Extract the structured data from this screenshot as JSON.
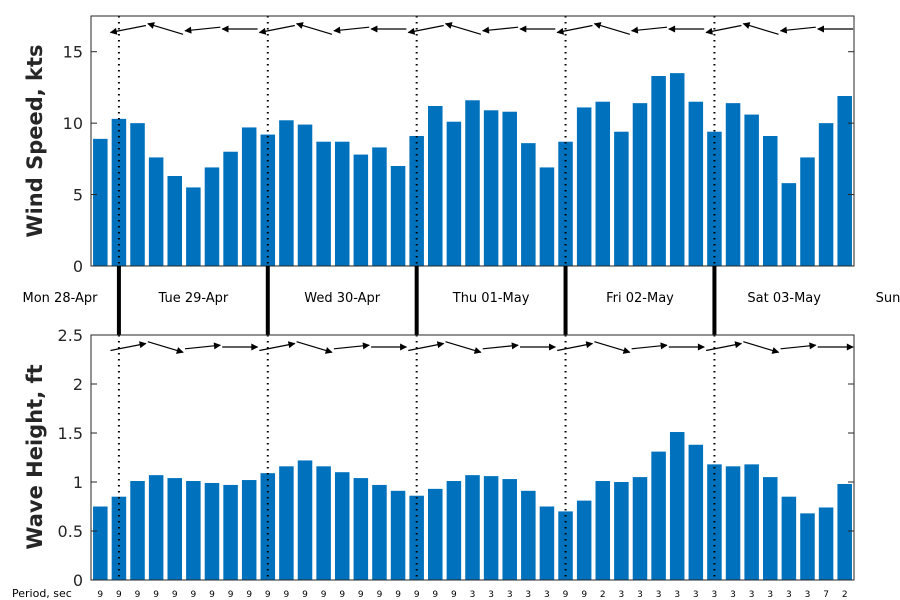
{
  "chart_data": [
    {
      "type": "bar",
      "ylabel": "Wind Speed, kts",
      "ylim": [
        0,
        17.5
      ],
      "yticks": [
        "0",
        "5",
        "10",
        "15"
      ],
      "ytick_values": [
        0,
        5,
        10,
        15
      ],
      "color": "#0072BD",
      "arrows": "westward (pointing left), slightly tilted",
      "values": [
        8.9,
        10.3,
        10.0,
        7.6,
        6.3,
        5.5,
        6.9,
        8.0,
        9.7,
        9.2,
        10.2,
        9.9,
        8.7,
        8.7,
        7.8,
        8.3,
        7.0,
        9.1,
        11.2,
        10.1,
        11.6,
        10.9,
        10.8,
        8.6,
        6.9,
        8.7,
        11.1,
        11.5,
        9.4,
        11.4,
        13.3,
        13.5,
        11.5,
        9.4,
        11.4,
        10.6,
        9.1,
        5.8,
        7.6,
        10.0,
        11.9
      ]
    },
    {
      "type": "bar",
      "ylabel": "Wave Height, ft",
      "ylim": [
        0,
        2.5
      ],
      "yticks": [
        "0",
        "0.5",
        "1",
        "1.5",
        "2",
        "2.5"
      ],
      "ytick_values": [
        0,
        0.5,
        1,
        1.5,
        2,
        2.5
      ],
      "color": "#0072BD",
      "arrows": "eastward (pointing right), slightly tilted",
      "values": [
        0.75,
        0.85,
        1.01,
        1.07,
        1.04,
        1.01,
        0.99,
        0.97,
        1.02,
        1.09,
        1.16,
        1.22,
        1.16,
        1.1,
        1.04,
        0.97,
        0.91,
        0.86,
        0.93,
        1.01,
        1.07,
        1.06,
        1.03,
        0.91,
        0.75,
        0.7,
        0.81,
        1.01,
        1.0,
        1.05,
        1.31,
        1.51,
        1.38,
        1.18,
        1.16,
        1.18,
        1.05,
        0.85,
        0.68,
        0.74,
        0.98
      ]
    }
  ],
  "days": [
    "Mon 28-Apr",
    "Tue 29-Apr",
    "Wed 30-Apr",
    "Thu 01-May",
    "Fri 02-May",
    "Sat 03-May",
    "Sun"
  ],
  "period_label": "Period, sec",
  "periods": [
    "9",
    "9",
    "9",
    "9",
    "9",
    "9",
    "9",
    "9",
    "9",
    "9",
    "9",
    "9",
    "9",
    "9",
    "9",
    "9",
    "9",
    "9",
    "9",
    "9",
    "3",
    "3",
    "3",
    "3",
    "3",
    "9",
    "9",
    "2",
    "3",
    "3",
    "3",
    "3",
    "3",
    "3",
    "3",
    "3",
    "3",
    "3",
    "3",
    "7",
    "2"
  ]
}
